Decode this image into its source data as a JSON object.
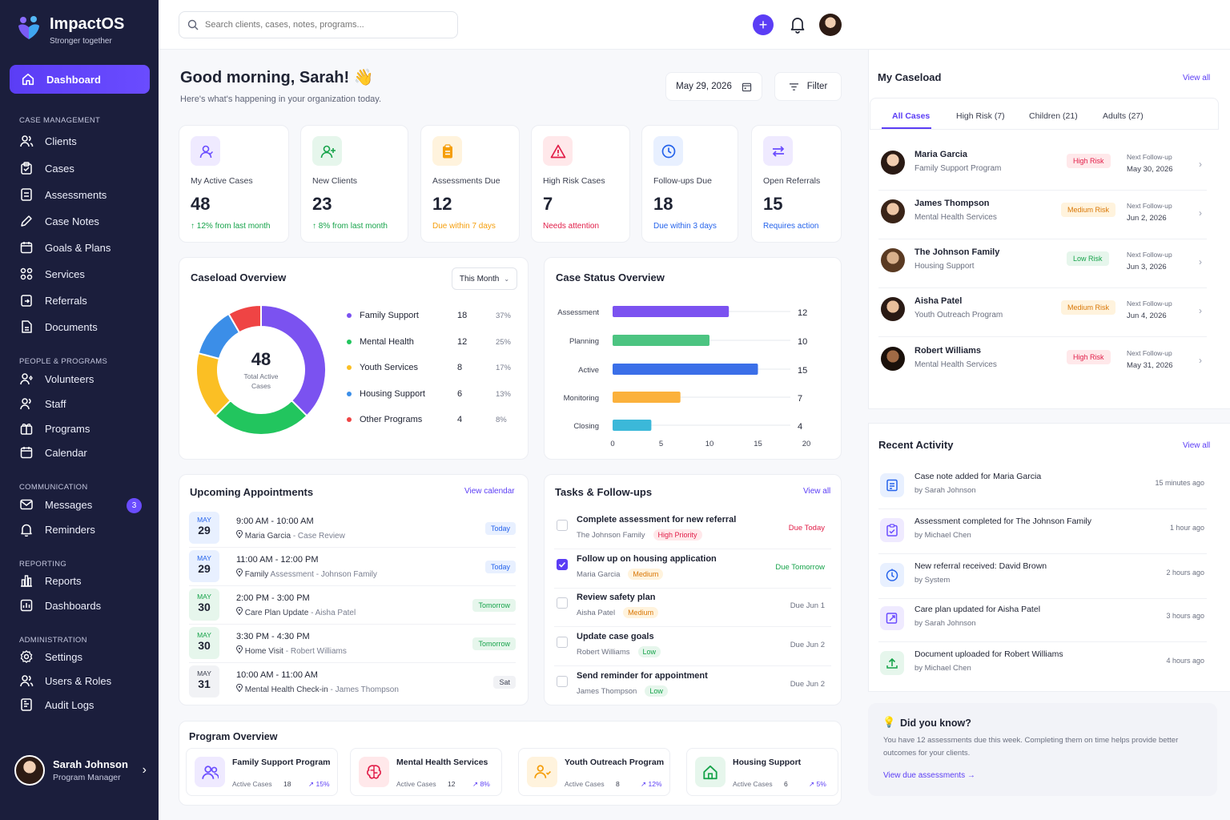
{
  "app": {
    "name": "ImpactOS",
    "tagline": "Stronger together"
  },
  "nav": {
    "active": "Dashboard",
    "sections": [
      {
        "title": "CASE MANAGEMENT",
        "items": [
          "Clients",
          "Cases",
          "Assessments",
          "Case Notes",
          "Goals & Plans",
          "Services",
          "Referrals",
          "Documents"
        ]
      },
      {
        "title": "PEOPLE & PROGRAMS",
        "items": [
          "Volunteers",
          "Staff",
          "Programs",
          "Calendar"
        ]
      },
      {
        "title": "COMMUNICATION",
        "items": [
          "Messages",
          "Reminders"
        ]
      },
      {
        "title": "REPORTING",
        "items": [
          "Reports",
          "Dashboards"
        ]
      },
      {
        "title": "ADMINISTRATION",
        "items": [
          "Settings",
          "Users & Roles",
          "Audit Logs"
        ]
      }
    ],
    "messages_badge": "3"
  },
  "user": {
    "name": "Sarah Johnson",
    "role": "Program Manager"
  },
  "search": {
    "placeholder": "Search clients, cases, notes, programs..."
  },
  "greeting": {
    "title": "Good morning, Sarah! 👋",
    "subtitle": "Here's what's happening in your organization today."
  },
  "date": "May 29, 2026",
  "filter_label": "Filter",
  "stats": [
    {
      "label": "My Active Cases",
      "value": "48",
      "sub": "↑ 12% from last month",
      "color": "#16a34a",
      "icon_bg": "#efeaff",
      "icon": "user-icon"
    },
    {
      "label": "New Clients",
      "value": "23",
      "sub": "↑ 8% from last month",
      "color": "#16a34a",
      "icon_bg": "#e6f6ec",
      "icon": "user-plus-icon"
    },
    {
      "label": "Assessments Due",
      "value": "12",
      "sub": "Due within 7 days",
      "color": "#f59e0b",
      "icon_bg": "#fff3dd",
      "icon": "clipboard-icon"
    },
    {
      "label": "High Risk Cases",
      "value": "7",
      "sub": "Needs attention",
      "color": "#e11d48",
      "icon_bg": "#ffe8ea",
      "icon": "warning-icon"
    },
    {
      "label": "Follow-ups Due",
      "value": "18",
      "sub": "Due within 3 days",
      "color": "#2563eb",
      "icon_bg": "#e8f0ff",
      "icon": "clock-icon"
    },
    {
      "label": "Open Referrals",
      "value": "15",
      "sub": "Requires action",
      "color": "#2563eb",
      "icon_bg": "#efeaff",
      "icon": "swap-icon"
    }
  ],
  "caseload": {
    "title": "Caseload Overview",
    "period": "This Month",
    "total": "48",
    "total_label": "Total Active Cases",
    "items": [
      {
        "name": "Family Support",
        "count": "18",
        "pct": "37%",
        "color": "#7b52f0"
      },
      {
        "name": "Mental Health",
        "count": "12",
        "pct": "25%",
        "color": "#22c55e"
      },
      {
        "name": "Youth Services",
        "count": "8",
        "pct": "17%",
        "color": "#fbbf24"
      },
      {
        "name": "Housing Support",
        "count": "6",
        "pct": "13%",
        "color": "#3b8ee8"
      },
      {
        "name": "Other Programs",
        "count": "4",
        "pct": "8%",
        "color": "#ef4444"
      }
    ]
  },
  "chart_data": {
    "type": "bar",
    "title": "Case Status Overview",
    "orientation": "horizontal",
    "categories": [
      "Assessment",
      "Planning",
      "Active",
      "Monitoring",
      "Closing"
    ],
    "values": [
      12,
      10,
      15,
      7,
      4
    ],
    "colors": [
      "#7b52f0",
      "#4cc481",
      "#3b6fe8",
      "#fbb13c",
      "#3bb8d9"
    ],
    "xlim": [
      0,
      20
    ],
    "xticks": [
      "0",
      "5",
      "10",
      "15",
      "20"
    ],
    "grid": false
  },
  "appointments": {
    "title": "Upcoming Appointments",
    "link": "View calendar",
    "items": [
      {
        "month": "MAY",
        "day": "29",
        "time": "9:00 AM - 10:00 AM",
        "who": "Maria Garcia",
        "what": "- Case Review",
        "tag": "Today",
        "tone": "blue"
      },
      {
        "month": "MAY",
        "day": "29",
        "time": "11:00 AM - 12:00 PM",
        "who": "Family",
        "what": "Assessment - Johnson Family",
        "tag": "Today",
        "tone": "blue"
      },
      {
        "month": "MAY",
        "day": "30",
        "time": "2:00 PM - 3:00 PM",
        "who": "Care Plan Update",
        "what": "- Aisha Patel",
        "tag": "Tomorrow",
        "tone": "green"
      },
      {
        "month": "MAY",
        "day": "30",
        "time": "3:30 PM - 4:30 PM",
        "who": "Home Visit",
        "what": "- Robert Williams",
        "tag": "Tomorrow",
        "tone": "green"
      },
      {
        "month": "MAY",
        "day": "31",
        "time": "10:00 AM - 11:00 AM",
        "who": "Mental Health Check-in",
        "what": "- James Thompson",
        "tag": "Sat",
        "tone": "gray"
      }
    ]
  },
  "tasks": {
    "title": "Tasks & Follow-ups",
    "link": "View all",
    "items": [
      {
        "title": "Complete assessment for new referral",
        "person": "The Johnson Family",
        "priority": "High Priority",
        "ptone": "red",
        "due": "Due Today",
        "dcolor": "#e11d48",
        "done": false
      },
      {
        "title": "Follow up on housing application",
        "person": "Maria Garcia",
        "priority": "Medium",
        "ptone": "orange",
        "due": "Due Tomorrow",
        "dcolor": "#16a34a",
        "done": true
      },
      {
        "title": "Review safety plan",
        "person": "Aisha Patel",
        "priority": "Medium",
        "ptone": "orange",
        "due": "Due Jun 1",
        "dcolor": "#6b7080",
        "done": false
      },
      {
        "title": "Update case goals",
        "person": "Robert Williams",
        "priority": "Low",
        "ptone": "green",
        "due": "Due Jun 2",
        "dcolor": "#6b7080",
        "done": false
      },
      {
        "title": "Send reminder for appointment",
        "person": "James Thompson",
        "priority": "Low",
        "ptone": "green",
        "due": "Due Jun 2",
        "dcolor": "#6b7080",
        "done": false
      }
    ]
  },
  "programs": {
    "title": "Program Overview",
    "metric_label": "Active Cases",
    "items": [
      {
        "name": "Family Support Program",
        "count": "18",
        "delta": "↗ 15%",
        "icon": "users-icon",
        "bg": "#efeaff"
      },
      {
        "name": "Mental Health Services",
        "count": "12",
        "delta": "↗ 8%",
        "icon": "brain-icon",
        "bg": "#ffe8ea"
      },
      {
        "name": "Youth Outreach Program",
        "count": "8",
        "delta": "↗ 12%",
        "icon": "youth-icon",
        "bg": "#fff3dd"
      },
      {
        "name": "Housing Support",
        "count": "6",
        "delta": "↗ 5%",
        "icon": "home-icon",
        "bg": "#e6f6ec"
      }
    ]
  },
  "caseload_list": {
    "title": "My Caseload",
    "link": "View all",
    "tabs": [
      "All Cases",
      "High Risk (7)",
      "Children (21)",
      "Adults (27)"
    ],
    "next_label": "Next Follow-up",
    "items": [
      {
        "name": "Maria Garcia",
        "program": "Family Support Program",
        "risk": "High Risk",
        "tone": "red",
        "date": "May 30, 2026"
      },
      {
        "name": "James Thompson",
        "program": "Mental Health Services",
        "risk": "Medium Risk",
        "tone": "orange",
        "date": "Jun 2, 2026"
      },
      {
        "name": "The Johnson Family",
        "program": "Housing Support",
        "risk": "Low Risk",
        "tone": "green",
        "date": "Jun 3, 2026"
      },
      {
        "name": "Aisha Patel",
        "program": "Youth Outreach Program",
        "risk": "Medium Risk",
        "tone": "orange",
        "date": "Jun 4, 2026"
      },
      {
        "name": "Robert Williams",
        "program": "Mental Health Services",
        "risk": "High Risk",
        "tone": "red",
        "date": "May 31, 2026"
      }
    ]
  },
  "activity": {
    "title": "Recent Activity",
    "link": "View all",
    "items": [
      {
        "text": "Case note added for Maria Garcia",
        "by": "by Sarah Johnson",
        "time": "15 minutes ago",
        "bg": "#e8f0ff",
        "color": "#2563eb"
      },
      {
        "text": "Assessment completed for The Johnson Family",
        "by": "by Michael Chen",
        "time": "1 hour ago",
        "bg": "#efeaff",
        "color": "#6a4cff"
      },
      {
        "text": "New referral received: David Brown",
        "by": "by System",
        "time": "2 hours ago",
        "bg": "#e8f0ff",
        "color": "#2563eb"
      },
      {
        "text": "Care plan updated for Aisha Patel",
        "by": "by Sarah Johnson",
        "time": "3 hours ago",
        "bg": "#efeaff",
        "color": "#6a4cff"
      },
      {
        "text": "Document uploaded for Robert Williams",
        "by": "by Michael Chen",
        "time": "4 hours ago",
        "bg": "#e6f6ec",
        "color": "#16a34a"
      }
    ]
  },
  "tip": {
    "title": "Did you know?",
    "body": "You have 12 assessments due this week. Completing them on time helps provide better outcomes for your clients.",
    "link": "View due assessments →"
  }
}
